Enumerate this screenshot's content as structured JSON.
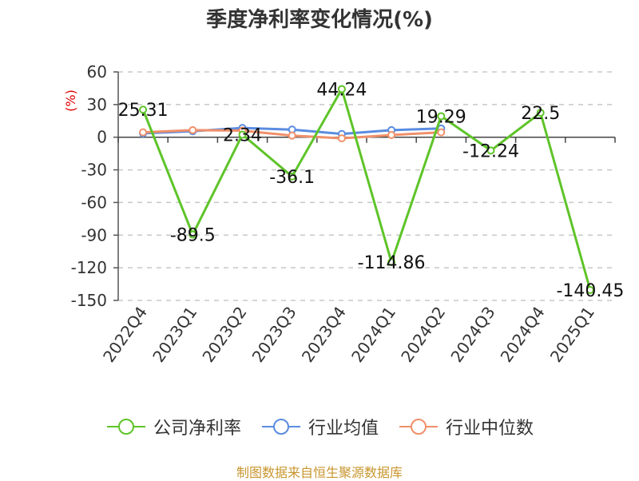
{
  "title": "季度净利率变化情况(%)",
  "footer": "制图数据来自恒生聚源数据库",
  "chart_data": {
    "type": "line",
    "title": "季度净利率变化情况(%)",
    "ylabel": "(%)",
    "xlabel": "",
    "ylim": [
      -150,
      60
    ],
    "yticks": [
      60,
      30,
      0,
      -30,
      -60,
      -90,
      -120,
      -150
    ],
    "grid": true,
    "legend_position": "bottom",
    "categories": [
      "2022Q4",
      "2023Q1",
      "2023Q2",
      "2023Q3",
      "2023Q4",
      "2024Q1",
      "2024Q2",
      "2024Q3",
      "2024Q4",
      "2025Q1"
    ],
    "series": [
      {
        "name": "公司净利率",
        "color": "#5ec429",
        "values": [
          25.31,
          -89.5,
          2.34,
          -36.1,
          44.24,
          -114.86,
          19.29,
          -12.24,
          22.5,
          -140.45
        ],
        "labels": [
          "25.31",
          "-89.5",
          "2.34",
          "-36.1",
          "44.24",
          "-114.86",
          "19.29",
          "-12.24",
          "22.5",
          "-140.45"
        ]
      },
      {
        "name": "行业均值",
        "color": "#5b8ce0",
        "values": [
          3.5,
          5.5,
          8.5,
          7.0,
          3.0,
          6.5,
          8.0,
          null,
          null,
          null
        ]
      },
      {
        "name": "行业中位数",
        "color": "#f0906a",
        "values": [
          4.5,
          6.5,
          6.0,
          1.5,
          -1.0,
          2.0,
          4.5,
          null,
          null,
          null
        ]
      }
    ]
  }
}
